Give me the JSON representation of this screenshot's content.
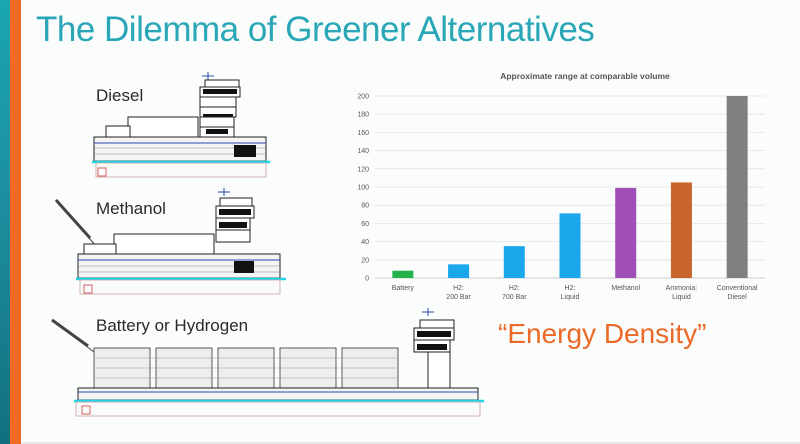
{
  "slide": {
    "title": "The Dilemma of Greener Alternatives",
    "accent_teal": "#2aa7b7",
    "accent_orange": "#ef6a24"
  },
  "vessels": [
    {
      "label": "Diesel"
    },
    {
      "label": "Methanol"
    },
    {
      "label": "Battery or Hydrogen"
    }
  ],
  "callout": "“Energy Density”",
  "chart_data": {
    "type": "bar",
    "title": "Approximate range at comparable volume",
    "categories": [
      [
        "Battery"
      ],
      [
        "H2:",
        "200 Bar"
      ],
      [
        "H2:",
        "700 Bar"
      ],
      [
        "H2:",
        "Liquid"
      ],
      [
        "Methanol"
      ],
      [
        "Ammonia:",
        "Liquid"
      ],
      [
        "Conventional",
        "Diesel"
      ]
    ],
    "values": [
      8,
      15,
      35,
      71,
      99,
      105,
      200
    ],
    "colors": [
      "#22b24c",
      "#1aa7ec",
      "#1aa7ec",
      "#1aa7ec",
      "#a04fb8",
      "#c8642c",
      "#808080"
    ],
    "ylim": [
      0,
      200
    ],
    "yticks": [
      0,
      20,
      40,
      60,
      80,
      100,
      120,
      140,
      160,
      180,
      200
    ],
    "grid": true,
    "xlabel": "",
    "ylabel": ""
  }
}
